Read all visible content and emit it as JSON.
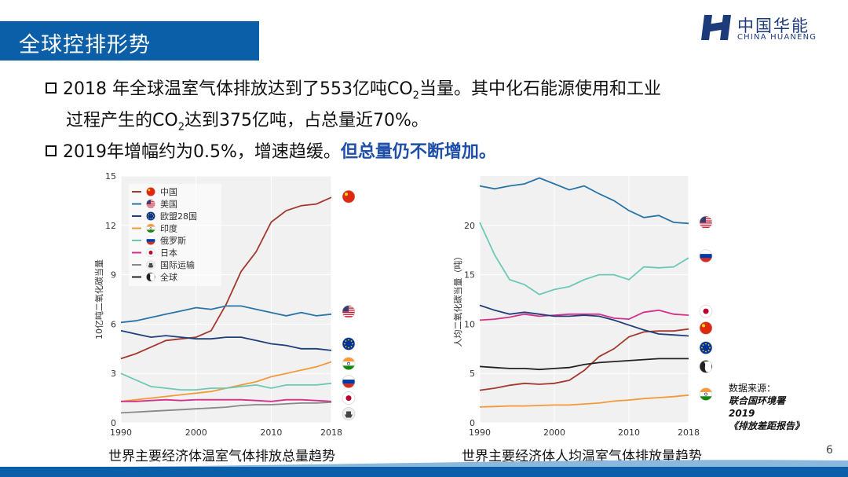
{
  "header": {
    "title": "全球控排形势",
    "logo_cn": "中国华能",
    "logo_en": "CHINA HUANENG"
  },
  "bullets": {
    "b1_l1_a": "2018 年全球温室气体排放达到了553亿吨CO",
    "b1_l1_sub": "2",
    "b1_l1_b": "当量。其中化石能源使用和工业",
    "b1_l2_a": "过程产生的CO",
    "b1_l2_sub": "2",
    "b1_l2_b": "达到375亿吨，占总量近70%。",
    "b2_a": "2019年增幅约为0.5%，增速趋缓。",
    "b2_b": "但总量仍不断增加。"
  },
  "captions": {
    "left": "世界主要经济体温室气体排放总量趋势",
    "right": "世界主要经济体人均温室气体排放量趋势"
  },
  "source": {
    "l1": "数据来源：",
    "l2": "联合国环境署",
    "l3": "2019",
    "l4": "《排放差距报告》"
  },
  "page_number": "6",
  "colors": {
    "brand_blue": "#0b5ea8",
    "china": "#a3392f",
    "usa": "#2a74a8",
    "eu": "#1f3f7a",
    "india": "#f29a3a",
    "russia": "#6cc9b5",
    "japan": "#d6318a",
    "shipping": "#888888",
    "world": "#222222"
  },
  "chart_data": [
    {
      "type": "line",
      "ylabel": "10亿吨二氧化碳当量",
      "xlim": [
        1990,
        2018
      ],
      "ylim": [
        0,
        15
      ],
      "xticks": [
        1990,
        2000,
        2010,
        2018
      ],
      "yticks": [
        0,
        3,
        6,
        9,
        12,
        15
      ],
      "legend_position": "top-left",
      "flag_icons": [
        "china-flag-icon",
        "usa-flag-icon",
        "eu-flag-icon",
        "india-flag-icon",
        "russia-flag-icon",
        "japan-flag-icon",
        "shipping-icon"
      ],
      "series": [
        {
          "name": "中国",
          "color": "#a3392f",
          "x": [
            1990,
            1992,
            1994,
            1996,
            1998,
            2000,
            2002,
            2004,
            2006,
            2008,
            2010,
            2012,
            2014,
            2016,
            2018
          ],
          "values": [
            3.9,
            4.2,
            4.6,
            5.0,
            5.1,
            5.2,
            5.6,
            7.2,
            9.2,
            10.4,
            12.2,
            12.9,
            13.2,
            13.3,
            13.7
          ]
        },
        {
          "name": "美国",
          "color": "#2a74a8",
          "x": [
            1990,
            1992,
            1994,
            1996,
            1998,
            2000,
            2002,
            2004,
            2006,
            2008,
            2010,
            2012,
            2014,
            2016,
            2018
          ],
          "values": [
            6.1,
            6.2,
            6.4,
            6.6,
            6.8,
            7.0,
            6.9,
            7.1,
            7.1,
            6.9,
            6.7,
            6.5,
            6.7,
            6.5,
            6.6
          ]
        },
        {
          "name": "欧盟28国",
          "color": "#1f3f7a",
          "x": [
            1990,
            1992,
            1994,
            1996,
            1998,
            2000,
            2002,
            2004,
            2006,
            2008,
            2010,
            2012,
            2014,
            2016,
            2018
          ],
          "values": [
            5.6,
            5.4,
            5.2,
            5.3,
            5.2,
            5.1,
            5.1,
            5.2,
            5.2,
            5.0,
            4.8,
            4.7,
            4.5,
            4.5,
            4.4
          ]
        },
        {
          "name": "印度",
          "color": "#f29a3a",
          "x": [
            1990,
            1992,
            1994,
            1996,
            1998,
            2000,
            2002,
            2004,
            2006,
            2008,
            2010,
            2012,
            2014,
            2016,
            2018
          ],
          "values": [
            1.3,
            1.4,
            1.5,
            1.6,
            1.7,
            1.8,
            1.9,
            2.1,
            2.3,
            2.5,
            2.8,
            3.0,
            3.2,
            3.4,
            3.7
          ]
        },
        {
          "name": "俄罗斯",
          "color": "#6cc9b5",
          "x": [
            1990,
            1992,
            1994,
            1996,
            1998,
            2000,
            2002,
            2004,
            2006,
            2008,
            2010,
            2012,
            2014,
            2016,
            2018
          ],
          "values": [
            3.0,
            2.6,
            2.2,
            2.1,
            2.0,
            2.0,
            2.1,
            2.1,
            2.2,
            2.3,
            2.1,
            2.3,
            2.3,
            2.3,
            2.4
          ]
        },
        {
          "name": "日本",
          "color": "#d6318a",
          "x": [
            1990,
            1992,
            1994,
            1996,
            1998,
            2000,
            2002,
            2004,
            2006,
            2008,
            2010,
            2012,
            2014,
            2016,
            2018
          ],
          "values": [
            1.3,
            1.3,
            1.35,
            1.4,
            1.35,
            1.4,
            1.4,
            1.4,
            1.4,
            1.35,
            1.3,
            1.4,
            1.4,
            1.35,
            1.3
          ]
        },
        {
          "name": "国际运输",
          "color": "#888888",
          "x": [
            1990,
            1992,
            1994,
            1996,
            1998,
            2000,
            2002,
            2004,
            2006,
            2008,
            2010,
            2012,
            2014,
            2016,
            2018
          ],
          "values": [
            0.6,
            0.65,
            0.7,
            0.75,
            0.8,
            0.85,
            0.9,
            0.95,
            1.05,
            1.1,
            1.1,
            1.15,
            1.2,
            1.2,
            1.25
          ]
        },
        {
          "name": "全球",
          "color": "#222222",
          "x": [],
          "values": []
        }
      ]
    },
    {
      "type": "line",
      "ylabel": "人均二氧化碳当量（吨）",
      "xlim": [
        1990,
        2018
      ],
      "ylim": [
        0,
        25
      ],
      "xticks": [
        1990,
        2000,
        2010,
        2018
      ],
      "yticks": [
        0,
        5,
        10,
        15,
        20
      ],
      "flag_icons": [
        "usa-flag-icon",
        "russia-flag-icon",
        "japan-flag-icon",
        "china-flag-icon",
        "eu-flag-icon",
        "globe-icon",
        "india-flag-icon"
      ],
      "series": [
        {
          "name": "美国",
          "color": "#2a74a8",
          "x": [
            1990,
            1992,
            1994,
            1996,
            1998,
            2000,
            2002,
            2004,
            2006,
            2008,
            2010,
            2012,
            2014,
            2016,
            2018
          ],
          "values": [
            24.0,
            23.7,
            24.0,
            24.2,
            24.8,
            24.2,
            23.6,
            24.0,
            23.2,
            22.5,
            21.5,
            20.8,
            21.0,
            20.3,
            20.2
          ]
        },
        {
          "name": "俄罗斯",
          "color": "#6cc9b5",
          "x": [
            1990,
            1992,
            1994,
            1996,
            1998,
            2000,
            2002,
            2004,
            2006,
            2008,
            2010,
            2012,
            2014,
            2016,
            2018
          ],
          "values": [
            20.3,
            17.0,
            14.5,
            14.0,
            13.0,
            13.5,
            13.8,
            14.5,
            15.0,
            15.0,
            14.5,
            15.8,
            15.7,
            15.8,
            16.7
          ]
        },
        {
          "name": "日本",
          "color": "#d6318a",
          "x": [
            1990,
            1992,
            1994,
            1996,
            1998,
            2000,
            2002,
            2004,
            2006,
            2008,
            2010,
            2012,
            2014,
            2016,
            2018
          ],
          "values": [
            10.4,
            10.5,
            10.7,
            11.0,
            10.8,
            10.9,
            11.0,
            11.0,
            11.0,
            10.6,
            10.5,
            11.2,
            11.4,
            11.0,
            10.9
          ]
        },
        {
          "name": "中国",
          "color": "#a3392f",
          "x": [
            1990,
            1992,
            1994,
            1996,
            1998,
            2000,
            2002,
            2004,
            2006,
            2008,
            2010,
            2012,
            2014,
            2016,
            2018
          ],
          "values": [
            3.3,
            3.5,
            3.8,
            4.0,
            3.9,
            4.0,
            4.3,
            5.3,
            6.7,
            7.5,
            8.7,
            9.2,
            9.3,
            9.3,
            9.5
          ]
        },
        {
          "name": "欧盟28国",
          "color": "#1f3f7a",
          "x": [
            1990,
            1992,
            1994,
            1996,
            1998,
            2000,
            2002,
            2004,
            2006,
            2008,
            2010,
            2012,
            2014,
            2016,
            2018
          ],
          "values": [
            11.9,
            11.4,
            11.0,
            11.2,
            11.0,
            10.8,
            10.8,
            10.9,
            10.8,
            10.4,
            9.9,
            9.4,
            9.0,
            8.9,
            8.8
          ]
        },
        {
          "name": "全球",
          "color": "#222222",
          "x": [
            1990,
            1992,
            1994,
            1996,
            1998,
            2000,
            2002,
            2004,
            2006,
            2008,
            2010,
            2012,
            2014,
            2016,
            2018
          ],
          "values": [
            5.7,
            5.6,
            5.5,
            5.5,
            5.4,
            5.5,
            5.6,
            5.9,
            6.1,
            6.2,
            6.3,
            6.4,
            6.5,
            6.5,
            6.5
          ]
        },
        {
          "name": "印度",
          "color": "#f29a3a",
          "x": [
            1990,
            1992,
            1994,
            1996,
            1998,
            2000,
            2002,
            2004,
            2006,
            2008,
            2010,
            2012,
            2014,
            2016,
            2018
          ],
          "values": [
            1.6,
            1.65,
            1.7,
            1.7,
            1.75,
            1.8,
            1.8,
            1.9,
            2.0,
            2.2,
            2.3,
            2.45,
            2.55,
            2.65,
            2.8
          ]
        }
      ]
    }
  ]
}
